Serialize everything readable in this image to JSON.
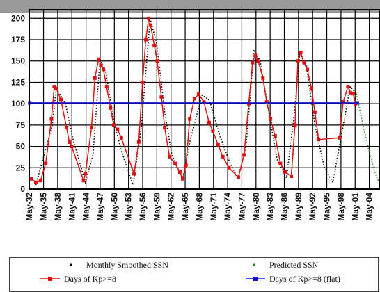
{
  "chart_data": {
    "type": "line",
    "title": "",
    "xlabel": "",
    "ylabel": "",
    "ylim": [
      0,
      210
    ],
    "yticks": [
      0,
      25,
      50,
      75,
      100,
      125,
      150,
      175,
      200
    ],
    "xlim": [
      1932.3,
      2006.6
    ],
    "xticks": [
      {
        "label": "May-32",
        "x": 1932.33
      },
      {
        "label": "May-35",
        "x": 1935.33
      },
      {
        "label": "May-38",
        "x": 1938.33
      },
      {
        "label": "May-41",
        "x": 1941.33
      },
      {
        "label": "May-44",
        "x": 1944.33
      },
      {
        "label": "May-47",
        "x": 1947.33
      },
      {
        "label": "May-50",
        "x": 1950.33
      },
      {
        "label": "May-53",
        "x": 1953.33
      },
      {
        "label": "May-56",
        "x": 1956.33
      },
      {
        "label": "May-59",
        "x": 1959.33
      },
      {
        "label": "May-62",
        "x": 1962.33
      },
      {
        "label": "May-65",
        "x": 1965.33
      },
      {
        "label": "May-68",
        "x": 1968.33
      },
      {
        "label": "May-71",
        "x": 1971.33
      },
      {
        "label": "May-74",
        "x": 1974.33
      },
      {
        "label": "May-77",
        "x": 1977.33
      },
      {
        "label": "May-80",
        "x": 1980.33
      },
      {
        "label": "May-83",
        "x": 1983.33
      },
      {
        "label": "May-86",
        "x": 1986.33
      },
      {
        "label": "May-89",
        "x": 1989.33
      },
      {
        "label": "May-92",
        "x": 1992.33
      },
      {
        "label": "May-95",
        "x": 1995.33
      },
      {
        "label": "May-98",
        "x": 1998.33
      },
      {
        "label": "May-01",
        "x": 2001.33
      },
      {
        "label": "May-04",
        "x": 2004.33
      }
    ],
    "grid": true,
    "series": [
      {
        "name": "Monthly Smoothed SSN",
        "color": "#000000",
        "style": "dotted",
        "x": [
          1933.7,
          1937.2,
          1938.0,
          1940.0,
          1941.5,
          1944.2,
          1945.8,
          1947.3,
          1948.5,
          1950.2,
          1951.8,
          1954.3,
          1956.0,
          1957.9,
          1959.3,
          1961.0,
          1962.5,
          1964.8,
          1966.3,
          1968.9,
          1970.5,
          1972.5,
          1974.5,
          1976.5,
          1978.2,
          1979.9,
          1981.2,
          1983.2,
          1984.8,
          1986.8,
          1988.5,
          1989.6,
          1991.0,
          1992.8,
          1994.8,
          1996.6,
          1998.5,
          2000.3,
          2001.6
        ],
        "y": [
          5,
          75,
          118,
          100,
          60,
          8,
          40,
          152,
          138,
          80,
          45,
          5,
          70,
          200,
          170,
          90,
          40,
          12,
          55,
          110,
          104,
          65,
          35,
          12,
          50,
          163,
          150,
          85,
          35,
          13,
          90,
          158,
          145,
          75,
          25,
          8,
          65,
          120,
          112
        ]
      },
      {
        "name": "Predicted SSN",
        "color": "#1a8a1a",
        "style": "dotted",
        "x": [
          2001.6,
          2002.6,
          2003.6,
          2004.6,
          2005.6,
          2006.4
        ],
        "y": [
          112,
          85,
          60,
          38,
          18,
          8
        ]
      },
      {
        "name": "Days of Kp>=8",
        "color": "#e01010",
        "style": "line-with-markers",
        "x": [
          1932.8,
          1933.7,
          1934.7,
          1935.8,
          1937.0,
          1937.6,
          1938.0,
          1939.0,
          1940.2,
          1940.8,
          1941.3,
          1943.8,
          1944.2,
          1945.5,
          1946.2,
          1947.0,
          1947.5,
          1948.0,
          1948.7,
          1949.5,
          1950.2,
          1951.0,
          1951.8,
          1954.5,
          1955.5,
          1956.3,
          1957.0,
          1957.6,
          1958.0,
          1958.8,
          1959.4,
          1960.3,
          1961.0,
          1962.0,
          1963.2,
          1964.2,
          1964.8,
          1965.5,
          1966.3,
          1967.3,
          1968.2,
          1969.3,
          1970.4,
          1971.2,
          1972.3,
          1973.3,
          1974.6,
          1976.6,
          1977.8,
          1978.8,
          1979.6,
          1980.2,
          1980.8,
          1981.8,
          1982.6,
          1983.4,
          1984.4,
          1985.5,
          1986.5,
          1987.8,
          1988.6,
          1989.2,
          1989.8,
          1990.5,
          1991.2,
          1992.1,
          1992.8,
          1993.6,
          1998.0,
          1998.8,
          1999.8,
          2000.3,
          2000.9,
          2001.4
        ],
        "y": [
          12,
          8,
          10,
          30,
          82,
          120,
          118,
          105,
          72,
          55,
          50,
          10,
          18,
          72,
          130,
          152,
          145,
          140,
          120,
          95,
          75,
          70,
          60,
          18,
          55,
          125,
          175,
          200,
          192,
          168,
          150,
          108,
          72,
          38,
          30,
          20,
          12,
          28,
          82,
          106,
          111,
          102,
          78,
          68,
          52,
          38,
          25,
          14,
          40,
          100,
          148,
          157,
          150,
          130,
          102,
          82,
          62,
          30,
          20,
          15,
          75,
          150,
          160,
          148,
          140,
          118,
          90,
          58,
          60,
          102,
          120,
          113,
          112,
          100
        ]
      },
      {
        "name": "Days of Kp>=8 (flat)",
        "color": "#1010e0",
        "style": "line-with-markers",
        "x": [
          1932.4,
          2001.8
        ],
        "y": [
          101,
          101
        ]
      }
    ],
    "legend": {
      "placement": "bottom",
      "entries": [
        {
          "label": "Monthly Smoothed SSN",
          "color": "#000000",
          "kind": "dots"
        },
        {
          "label": "Predicted SSN",
          "color": "#1a8a1a",
          "kind": "dots"
        },
        {
          "label": "Days of Kp>=8",
          "color": "#e01010",
          "kind": "line-marker"
        },
        {
          "label": "Days of Kp>=8 (flat)",
          "color": "#1010e0",
          "kind": "line-marker"
        }
      ]
    }
  }
}
